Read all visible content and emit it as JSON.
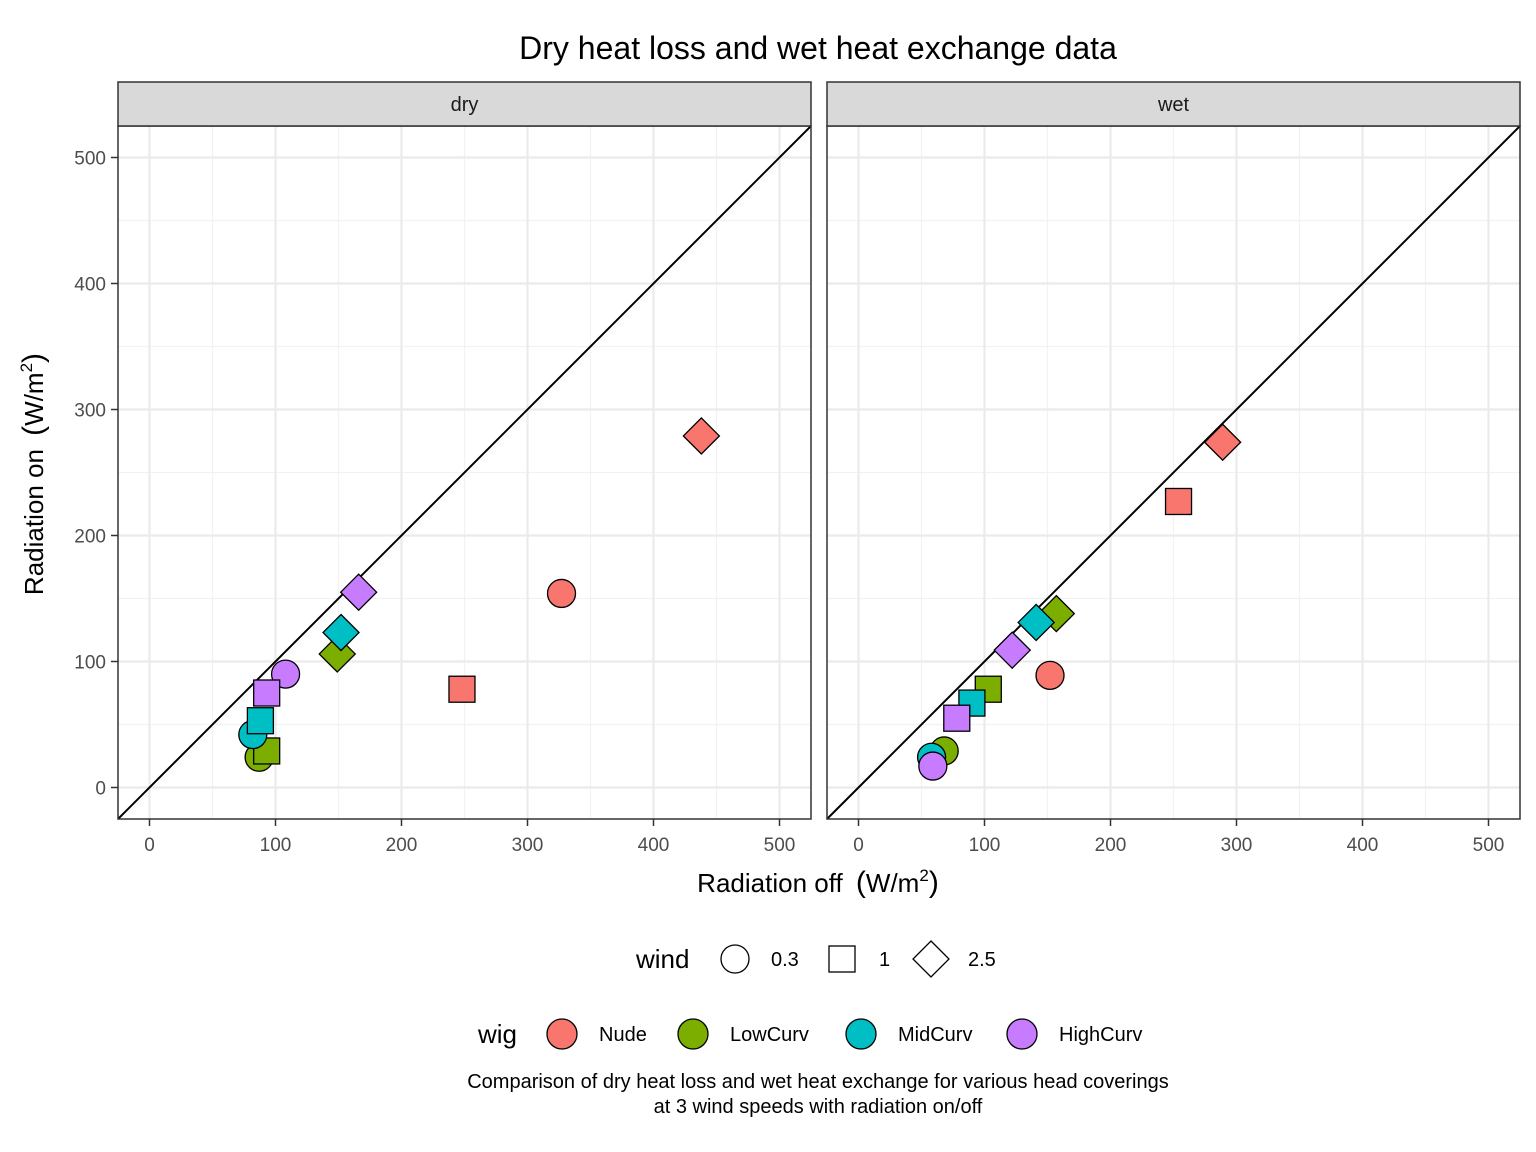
{
  "title": "Dry heat loss and wet heat exchange data",
  "caption": [
    "Comparison of dry heat loss and wet heat exchange for various head coverings",
    "at 3 wind speeds with radiation on/off"
  ],
  "axis": {
    "xlabel": "Radiation off",
    "ylabel": "Radiation on",
    "unit_open": "(",
    "unit_main": "W/m",
    "unit_sup": "2",
    "unit_close": ")"
  },
  "legend": {
    "wind_title": "wind",
    "wind_items": [
      {
        "label": "0.3",
        "shape": "circle"
      },
      {
        "label": "1",
        "shape": "square"
      },
      {
        "label": "2.5",
        "shape": "diamond"
      }
    ],
    "wig_title": "wig",
    "wig_items": [
      {
        "label": "Nude",
        "color": "#F8766D"
      },
      {
        "label": "LowCurv",
        "color": "#7CAE00"
      },
      {
        "label": "MidCurv",
        "color": "#00BFC4"
      },
      {
        "label": "HighCurv",
        "color": "#C77CFF"
      }
    ]
  },
  "chart_data": {
    "type": "scatter",
    "facets": [
      "dry",
      "wet"
    ],
    "xlim": [
      -25,
      525
    ],
    "ylim": [
      -25,
      525
    ],
    "xticks": [
      0,
      100,
      200,
      300,
      400,
      500
    ],
    "yticks": [
      0,
      100,
      200,
      300,
      400,
      500
    ],
    "reference_line": "y = x",
    "grid": true,
    "series_colors": {
      "Nude": "#F8766D",
      "LowCurv": "#7CAE00",
      "MidCurv": "#00BFC4",
      "HighCurv": "#C77CFF"
    },
    "shapes": {
      "0.3": "circle",
      "1": "square",
      "2.5": "diamond"
    },
    "points": {
      "dry": [
        {
          "wig": "Nude",
          "wind": "0.3",
          "x": 327,
          "y": 154
        },
        {
          "wig": "Nude",
          "wind": "1",
          "x": 248,
          "y": 78
        },
        {
          "wig": "Nude",
          "wind": "2.5",
          "x": 438,
          "y": 279
        },
        {
          "wig": "LowCurv",
          "wind": "0.3",
          "x": 87,
          "y": 24
        },
        {
          "wig": "LowCurv",
          "wind": "1",
          "x": 93,
          "y": 29
        },
        {
          "wig": "LowCurv",
          "wind": "2.5",
          "x": 149,
          "y": 106
        },
        {
          "wig": "MidCurv",
          "wind": "0.3",
          "x": 82,
          "y": 42
        },
        {
          "wig": "MidCurv",
          "wind": "1",
          "x": 88,
          "y": 53
        },
        {
          "wig": "MidCurv",
          "wind": "2.5",
          "x": 152,
          "y": 123
        },
        {
          "wig": "HighCurv",
          "wind": "0.3",
          "x": 108,
          "y": 90
        },
        {
          "wig": "HighCurv",
          "wind": "1",
          "x": 93,
          "y": 75
        },
        {
          "wig": "HighCurv",
          "wind": "2.5",
          "x": 166,
          "y": 155
        }
      ],
      "wet": [
        {
          "wig": "Nude",
          "wind": "0.3",
          "x": 152,
          "y": 89
        },
        {
          "wig": "Nude",
          "wind": "1",
          "x": 254,
          "y": 227
        },
        {
          "wig": "Nude",
          "wind": "2.5",
          "x": 289,
          "y": 274
        },
        {
          "wig": "LowCurv",
          "wind": "0.3",
          "x": 68,
          "y": 29
        },
        {
          "wig": "LowCurv",
          "wind": "1",
          "x": 103,
          "y": 78
        },
        {
          "wig": "LowCurv",
          "wind": "2.5",
          "x": 157,
          "y": 138
        },
        {
          "wig": "MidCurv",
          "wind": "0.3",
          "x": 58,
          "y": 24
        },
        {
          "wig": "MidCurv",
          "wind": "1",
          "x": 90,
          "y": 67
        },
        {
          "wig": "MidCurv",
          "wind": "2.5",
          "x": 141,
          "y": 131
        },
        {
          "wig": "HighCurv",
          "wind": "0.3",
          "x": 59,
          "y": 17
        },
        {
          "wig": "HighCurv",
          "wind": "1",
          "x": 78,
          "y": 55
        },
        {
          "wig": "HighCurv",
          "wind": "2.5",
          "x": 122,
          "y": 109
        }
      ]
    }
  }
}
